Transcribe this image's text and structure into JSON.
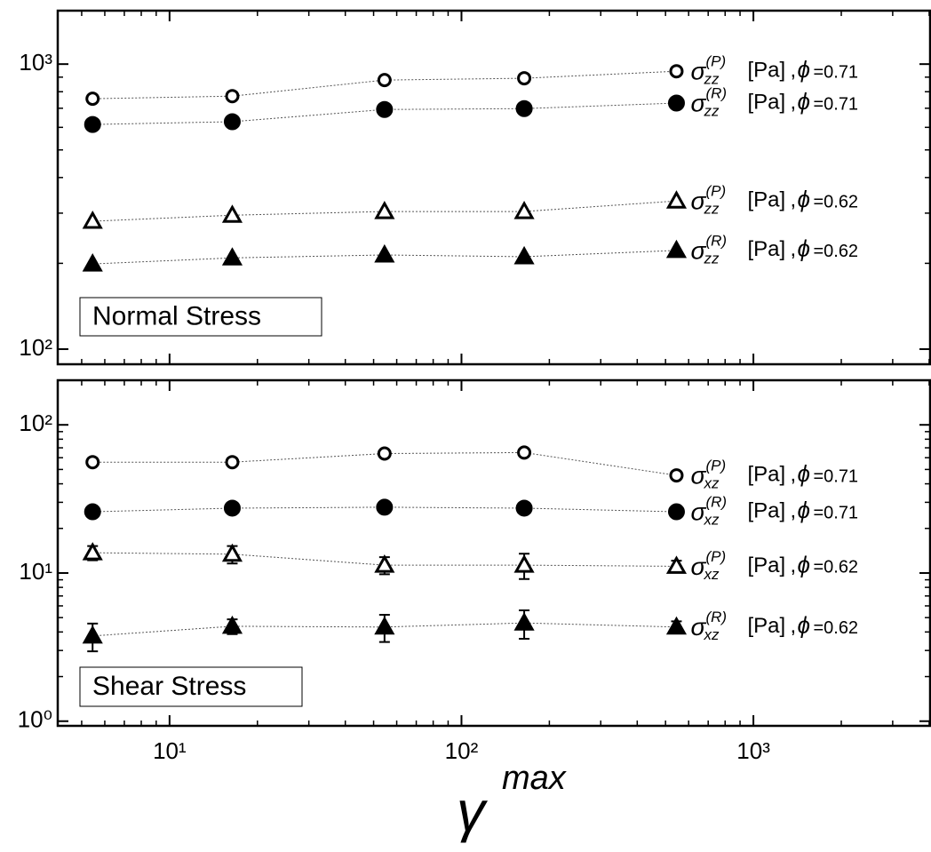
{
  "chart_data": [
    {
      "type": "line",
      "panel_label": "Normal Stress",
      "log_x": true,
      "log_y": true,
      "x": [
        5.45,
        16.4,
        54.5,
        164,
        545
      ],
      "xlim": [
        4.14,
        4030
      ],
      "xticks": [
        10,
        100,
        1000
      ],
      "ylim": [
        88.5,
        1540
      ],
      "yticks": [
        {
          "value": 100,
          "label": "10²"
        },
        {
          "value": 1000,
          "label": "10³"
        }
      ],
      "series": [
        {
          "marker": "open-circle",
          "color": "#000",
          "name_parts": {
            "symbol": "σ",
            "sup": "(P)",
            "sub": "zz",
            "unit": "[Pa]",
            "sep": ",",
            "phi": "ϕ",
            "eq": "=0.71"
          },
          "values": [
            756,
            772,
            879,
            892,
            944
          ]
        },
        {
          "marker": "filled-circle",
          "color": "#000",
          "name_parts": {
            "symbol": "σ",
            "sup": "(R)",
            "sub": "zz",
            "unit": "[Pa]",
            "sep": ",",
            "phi": "ϕ",
            "eq": "=0.71"
          },
          "values": [
            614,
            628,
            693,
            698,
            730
          ]
        },
        {
          "marker": "open-triangle",
          "color": "#000",
          "name_parts": {
            "symbol": "σ",
            "sup": "(P)",
            "sub": "zz",
            "unit": "[Pa]",
            "sep": ",",
            "phi": "ϕ",
            "eq": "=0.62"
          },
          "values": [
            281,
            295,
            304,
            304,
            331
          ]
        },
        {
          "marker": "filled-triangle",
          "color": "#000",
          "name_parts": {
            "symbol": "σ",
            "sup": "(R)",
            "sub": "zz",
            "unit": "[Pa]",
            "sep": ",",
            "phi": "ϕ",
            "eq": "=0.62"
          },
          "values": [
            199,
            209,
            214,
            211,
            222
          ]
        }
      ]
    },
    {
      "type": "line",
      "panel_label": "Shear Stress",
      "log_x": true,
      "log_y": true,
      "xlabel": {
        "symbol": "γ",
        "sup": "max"
      },
      "x": [
        5.45,
        16.4,
        54.5,
        164,
        545
      ],
      "xlim": [
        4.14,
        4030
      ],
      "xticks": [
        {
          "value": 10,
          "label": "10¹"
        },
        {
          "value": 100,
          "label": "10²"
        },
        {
          "value": 1000,
          "label": "10³"
        }
      ],
      "ylim": [
        0.93,
        200
      ],
      "yticks": [
        {
          "value": 1,
          "label": "10⁰"
        },
        {
          "value": 10,
          "label": "10¹"
        },
        {
          "value": 100,
          "label": "10²"
        }
      ],
      "series": [
        {
          "marker": "open-circle",
          "color": "#000",
          "name_parts": {
            "symbol": "σ",
            "sup": "(P)",
            "sub": "xz",
            "unit": "[Pa]",
            "sep": ",",
            "phi": "ϕ",
            "eq": "=0.71"
          },
          "values": [
            56,
            56,
            64,
            65,
            45.6
          ]
        },
        {
          "marker": "filled-circle",
          "color": "#000",
          "name_parts": {
            "symbol": "σ",
            "sup": "(R)",
            "sub": "xz",
            "unit": "[Pa]",
            "sep": ",",
            "phi": "ϕ",
            "eq": "=0.71"
          },
          "values": [
            25.9,
            27.4,
            27.8,
            27.4,
            25.9
          ]
        },
        {
          "marker": "open-triangle",
          "color": "#000",
          "name_parts": {
            "symbol": "σ",
            "sup": "(P)",
            "sub": "xz",
            "unit": "[Pa]",
            "sep": ",",
            "phi": "ϕ",
            "eq": "=0.62"
          },
          "values": [
            13.7,
            13.4,
            11.3,
            11.3,
            11.1
          ],
          "errors": [
            1.5,
            1.8,
            1.5,
            2.2,
            1.0
          ]
        },
        {
          "marker": "filled-triangle",
          "color": "#000",
          "name_parts": {
            "symbol": "σ",
            "sup": "(R)",
            "sub": "xz",
            "unit": "[Pa]",
            "sep": ",",
            "phi": "ϕ",
            "eq": "=0.62"
          },
          "values": [
            3.76,
            4.37,
            4.32,
            4.6,
            4.32
          ],
          "errors": [
            0.8,
            0.5,
            0.9,
            1.0,
            0.4
          ]
        }
      ]
    }
  ]
}
